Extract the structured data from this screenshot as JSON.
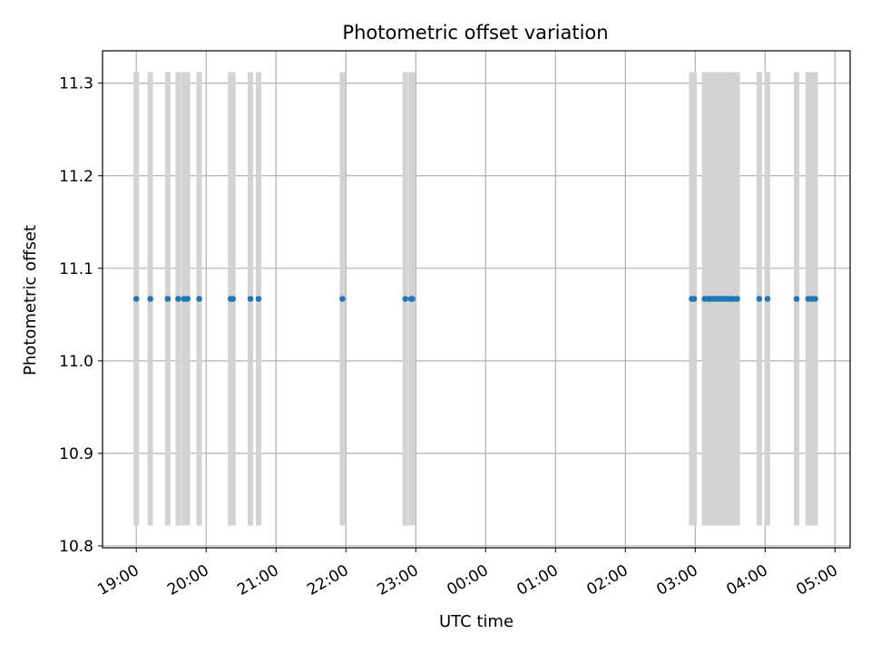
{
  "chart_data": {
    "type": "scatter",
    "title": "Photometric offset variation",
    "xlabel": "UTC time",
    "ylabel": "Photometric offset",
    "x_axis_type": "time",
    "xlim": [
      "18:31",
      "05:13"
    ],
    "ylim": [
      10.798,
      11.335
    ],
    "grid": true,
    "legend": "none",
    "x_ticks": [
      "19:00",
      "20:00",
      "21:00",
      "22:00",
      "23:00",
      "00:00",
      "01:00",
      "02:00",
      "03:00",
      "04:00",
      "05:00"
    ],
    "y_ticks": [
      "10.8",
      "10.9",
      "11.0",
      "11.1",
      "11.2",
      "11.3"
    ],
    "y_tick_values": [
      10.8,
      10.9,
      11.0,
      11.1,
      11.2,
      11.3
    ],
    "error_bars": {
      "color": "#d3d3d3",
      "low": 10.822,
      "high": 11.312
    },
    "series": [
      {
        "color": "#1f77b4",
        "y": 11.067,
        "x": [
          "19:00",
          "19:12",
          "19:27",
          "19:36",
          "19:41",
          "19:44",
          "19:54",
          "20:21",
          "20:23",
          "20:38",
          "20:45",
          "21:57",
          "22:51",
          "22:56",
          "22:57",
          "02:57",
          "02:59",
          "03:08",
          "03:11",
          "03:13",
          "03:15",
          "03:17",
          "03:19",
          "03:21",
          "03:23",
          "03:25",
          "03:27",
          "03:29",
          "03:31",
          "03:33",
          "03:36",
          "03:55",
          "04:02",
          "04:27",
          "04:37",
          "04:40",
          "04:43"
        ]
      }
    ]
  }
}
